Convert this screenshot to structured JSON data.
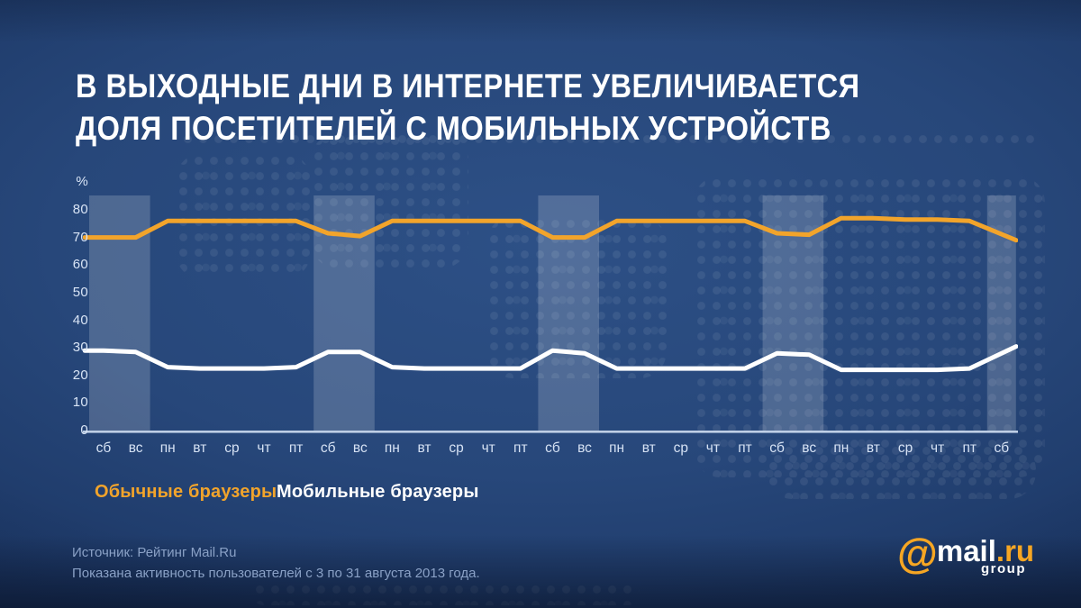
{
  "title": {
    "line1": "В ВЫХОДНЫЕ ДНИ В ИНТЕРНЕТЕ УВЕЛИЧИВАЕТСЯ",
    "line2": "ДОЛЯ ПОСЕТИТЕЛЕЙ С МОБИЛЬНЫХ УСТРОЙСТВ"
  },
  "chart_data": {
    "type": "line",
    "ylabel": "%",
    "ylim": [
      0,
      80
    ],
    "yticks": [
      80,
      70,
      60,
      50,
      40,
      30,
      20,
      10,
      0
    ],
    "grid": false,
    "legend_position": "bottom-left",
    "categories": [
      "сб",
      "вс",
      "пн",
      "вт",
      "ср",
      "чт",
      "пт",
      "сб",
      "вс",
      "пн",
      "вт",
      "ср",
      "чт",
      "пт",
      "сб",
      "вс",
      "пн",
      "вт",
      "ср",
      "чт",
      "пт",
      "сб",
      "вс",
      "пн",
      "вт",
      "ср",
      "чт",
      "пт",
      "сб"
    ],
    "series": [
      {
        "name": "Обычные браузеры",
        "color": "#F2A42B",
        "values": [
          70,
          70,
          76,
          76,
          76,
          76,
          76,
          71.5,
          70.5,
          76,
          76,
          76,
          76,
          76,
          70,
          70,
          76,
          76,
          76,
          76,
          76,
          71.5,
          71,
          77,
          77,
          76.5,
          76.5,
          76,
          69
        ]
      },
      {
        "name": "Мобильные браузеры",
        "color": "#FFFFFF",
        "values": [
          29,
          28.5,
          23,
          22.5,
          22.5,
          22.5,
          23,
          28.5,
          28.5,
          23,
          22.5,
          22.5,
          22.5,
          22.5,
          29,
          28,
          22.5,
          22.5,
          22.5,
          22.5,
          22.5,
          28,
          27.5,
          22,
          22,
          22,
          22,
          22.5,
          30.5
        ]
      }
    ],
    "weekend_bands": [
      [
        0,
        1
      ],
      [
        7,
        8
      ],
      [
        14,
        15
      ],
      [
        21,
        22
      ],
      [
        28,
        28
      ]
    ]
  },
  "footer": {
    "source": "Источник: Рейтинг Mail.Ru",
    "note": "Показана активность пользователей с 3 по 31 августа 2013 года."
  },
  "logo": {
    "at": "@",
    "name": "mail",
    "domain": ".ru",
    "suffix": "group"
  },
  "colors": {
    "background": "#24416F",
    "accent_orange": "#F2A42B",
    "line_white": "#FFFFFF",
    "weekend_band": "rgba(255,255,255,0.18)",
    "axis_line": "#CFDEF2",
    "axis_text": "#D9E5F6",
    "footer_text": "#8AA1C6",
    "logo_orange": "#F6A623"
  }
}
